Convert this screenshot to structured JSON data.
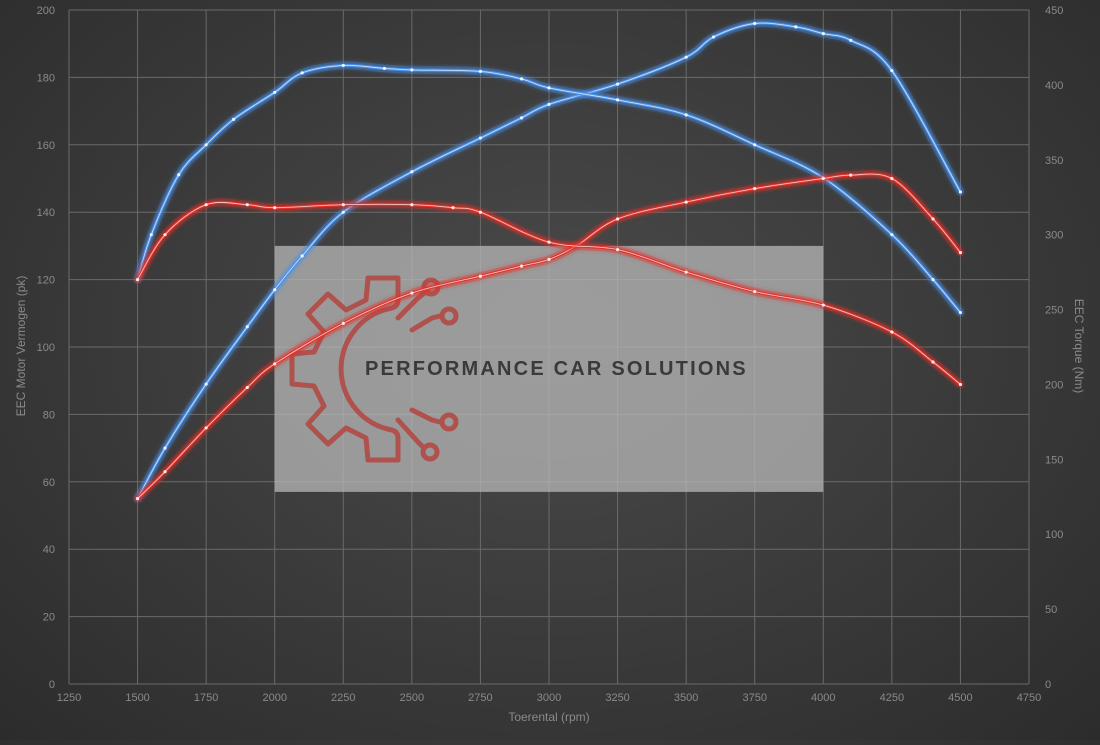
{
  "chart_data": {
    "type": "line",
    "xlabel": "Toerental (rpm)",
    "ylabel_left": "EEC Motor Vermogen (pk)",
    "ylabel_right": "EEC Torque (Nm)",
    "xlim": [
      1250,
      4750
    ],
    "ylim_left": [
      0,
      200
    ],
    "ylim_right": [
      0,
      450
    ],
    "x_ticks": [
      1250,
      1500,
      1750,
      2000,
      2250,
      2500,
      2750,
      3000,
      3250,
      3500,
      3750,
      4000,
      4250,
      4500,
      4750
    ],
    "y_left_ticks": [
      0,
      20,
      40,
      60,
      80,
      100,
      120,
      140,
      160,
      180,
      200
    ],
    "y_right_ticks": [
      0,
      50,
      100,
      150,
      200,
      250,
      300,
      350,
      400,
      450
    ],
    "grid": true,
    "series": [
      {
        "color": "#4a90e8",
        "axis": "left",
        "x": [
          1500,
          1600,
          1750,
          1900,
          2000,
          2100,
          2250,
          2500,
          2750,
          2900,
          3000,
          3250,
          3500,
          3600,
          3750,
          3900,
          4000,
          4100,
          4250,
          4500
        ],
        "y": [
          55,
          70,
          89,
          106,
          117,
          127,
          140,
          152,
          162,
          168,
          172,
          178,
          186,
          192,
          196,
          195,
          193,
          191,
          182,
          146
        ]
      },
      {
        "color": "#4a90e8",
        "axis": "right",
        "x": [
          1500,
          1550,
          1650,
          1750,
          1850,
          2000,
          2100,
          2250,
          2400,
          2500,
          2750,
          2900,
          3000,
          3250,
          3500,
          3750,
          4000,
          4250,
          4400,
          4500
        ],
        "y": [
          270,
          300,
          340,
          360,
          377,
          395,
          408,
          413,
          411,
          410,
          409,
          404,
          398,
          390,
          380,
          360,
          338,
          300,
          270,
          248
        ]
      },
      {
        "color": "#e0302a",
        "axis": "left",
        "x": [
          1500,
          1600,
          1750,
          1900,
          2000,
          2250,
          2500,
          2750,
          2900,
          3000,
          3100,
          3250,
          3500,
          3750,
          4000,
          4100,
          4250,
          4400,
          4500
        ],
        "y": [
          55,
          63,
          76,
          88,
          95,
          107,
          116,
          121,
          124,
          126,
          130,
          138,
          143,
          147,
          150,
          151,
          150,
          138,
          128
        ]
      },
      {
        "color": "#e0302a",
        "axis": "right",
        "x": [
          1500,
          1600,
          1750,
          1900,
          2000,
          2250,
          2500,
          2650,
          2750,
          3000,
          3250,
          3500,
          3750,
          4000,
          4250,
          4400,
          4500
        ],
        "y": [
          270,
          300,
          320,
          320,
          318,
          320,
          320,
          318,
          315,
          295,
          290,
          275,
          262,
          253,
          235,
          215,
          200
        ]
      }
    ]
  },
  "watermark": {
    "text": "PERFORMANCE CAR SOLUTIONS",
    "x_range": [
      2000,
      4000
    ],
    "y_range": [
      57,
      130
    ]
  }
}
